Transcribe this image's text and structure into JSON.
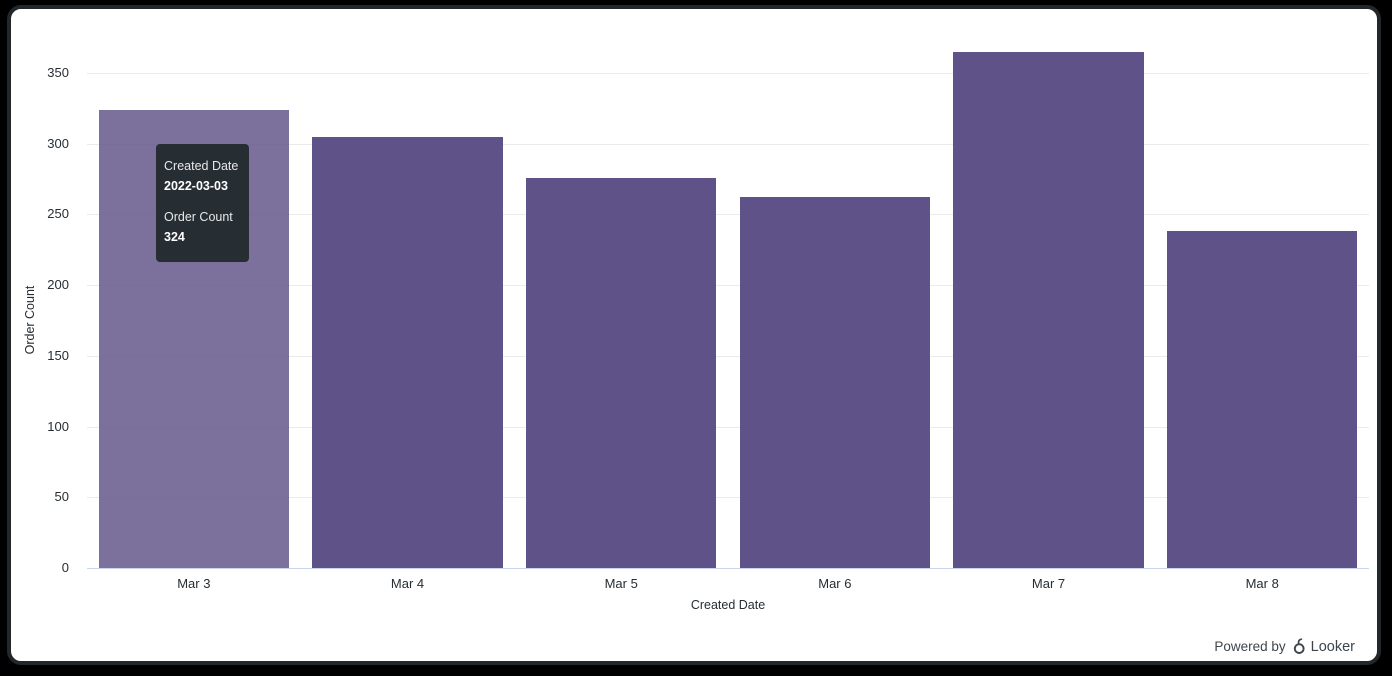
{
  "chart_data": {
    "type": "bar",
    "categories": [
      "Mar 3",
      "Mar 4",
      "Mar 5",
      "Mar 6",
      "Mar 7",
      "Mar 8"
    ],
    "values": [
      324,
      305,
      276,
      262,
      365,
      238
    ],
    "title": "",
    "xlabel": "Created Date",
    "ylabel": "Order Count",
    "ylim": [
      0,
      350
    ],
    "ytick_step": 50,
    "grid": true,
    "legend_position": "none",
    "bar_color": "#5F5288",
    "hovered_bar_index": 0,
    "gridline_color": "#ebebeb",
    "axis_line_color": "#ccd6eb",
    "label_color": "#262d33"
  },
  "tooltip": {
    "dimension_label": "Created Date",
    "dimension_value": "2022-03-03",
    "measure_label": "Order Count",
    "measure_value": "324",
    "background": "#262d33"
  },
  "footer": {
    "powered_by_text": "Powered by",
    "brand_name": "Looker"
  }
}
